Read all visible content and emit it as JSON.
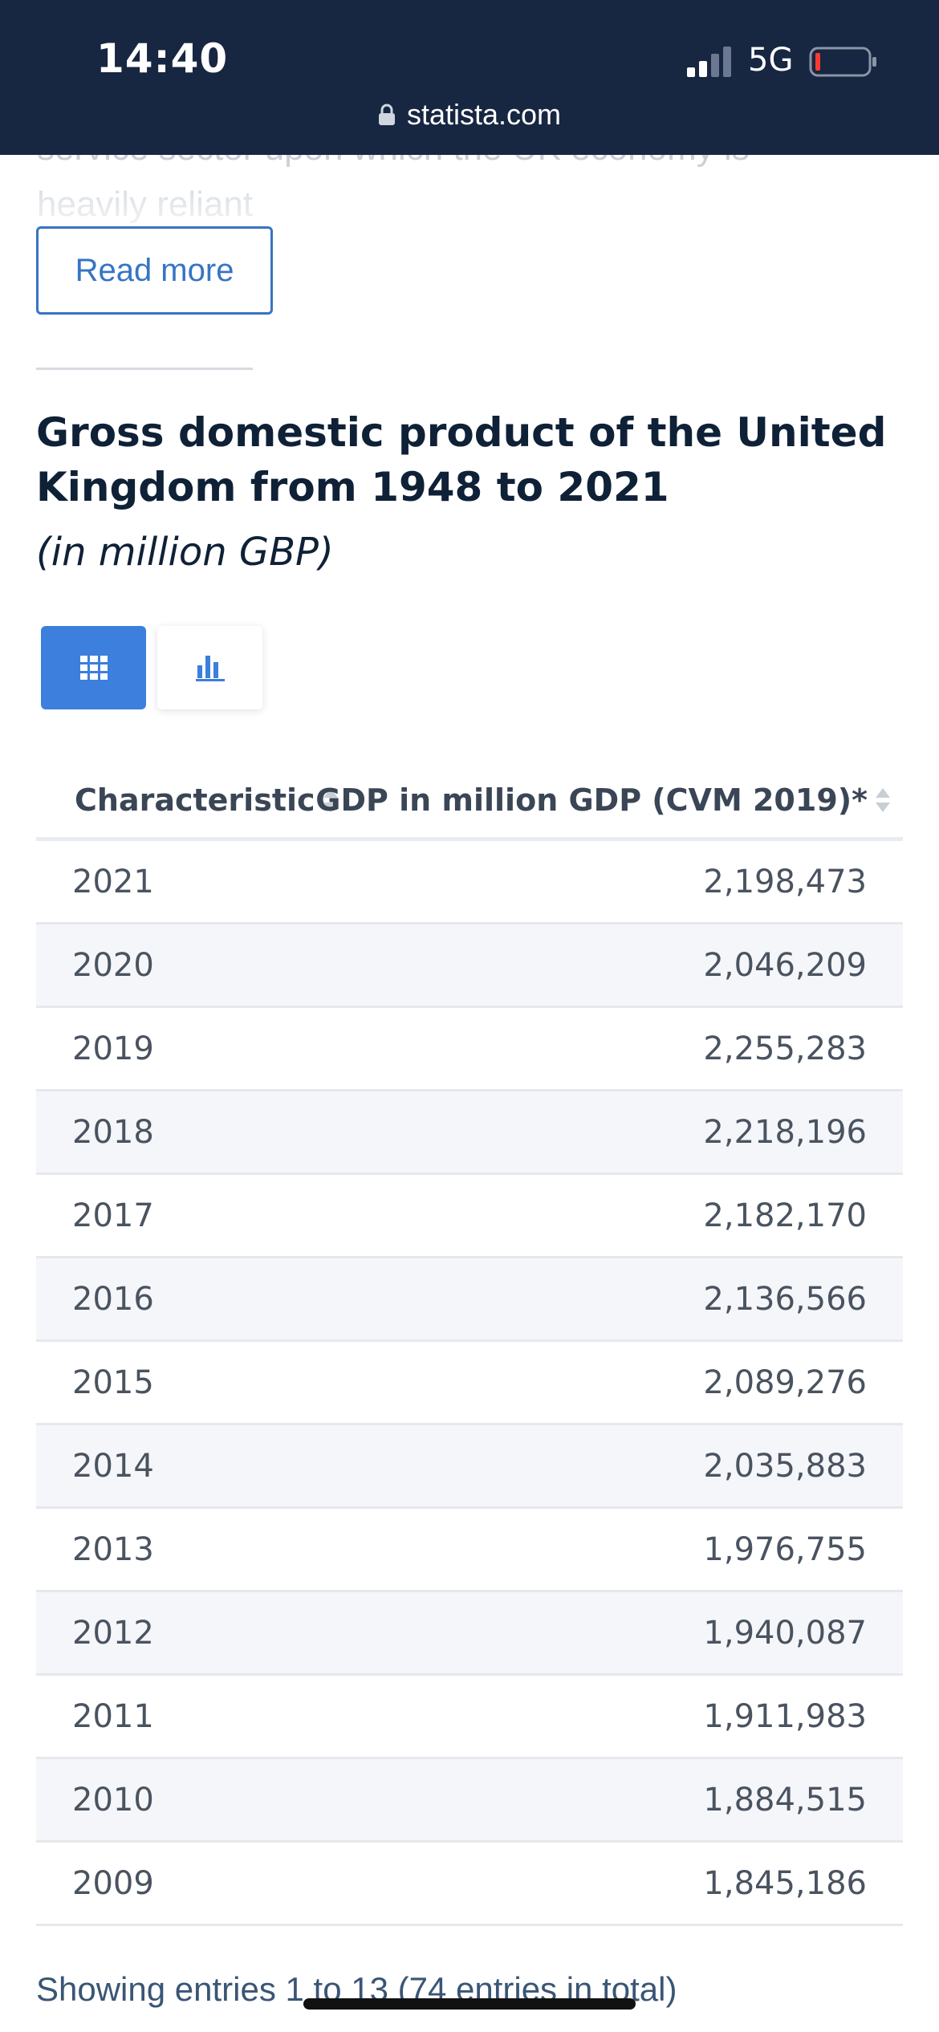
{
  "status_bar": {
    "time": "14:40",
    "network": "5G",
    "url": "statista.com"
  },
  "article": {
    "faded_text_line1": "service sector upon which the UK economy is",
    "faded_text_line2": "heavily reliant",
    "read_more_label": "Read more"
  },
  "statistic": {
    "title": "Gross domestic product of the United Kingdom from 1948 to 2021",
    "subtitle": "(in million GBP)"
  },
  "view_toggle": {
    "active": "table",
    "table_icon": "grid-icon",
    "chart_icon": "bar-chart-icon"
  },
  "table": {
    "columns": [
      "Characteristic",
      "GDP in million GDP (CVM 2019)*"
    ],
    "rows": [
      {
        "year": "2021",
        "value": "2,198,473"
      },
      {
        "year": "2020",
        "value": "2,046,209"
      },
      {
        "year": "2019",
        "value": "2,255,283"
      },
      {
        "year": "2018",
        "value": "2,218,196"
      },
      {
        "year": "2017",
        "value": "2,182,170"
      },
      {
        "year": "2016",
        "value": "2,136,566"
      },
      {
        "year": "2015",
        "value": "2,089,276"
      },
      {
        "year": "2014",
        "value": "2,035,883"
      },
      {
        "year": "2013",
        "value": "1,976,755"
      },
      {
        "year": "2012",
        "value": "1,940,087"
      },
      {
        "year": "2011",
        "value": "1,911,983"
      },
      {
        "year": "2010",
        "value": "1,884,515"
      },
      {
        "year": "2009",
        "value": "1,845,186"
      }
    ],
    "footer": "Showing entries 1 to 13 (74 entries in total)"
  },
  "colors": {
    "header_bg": "#172641",
    "accent": "#3c7fdc",
    "link": "#3774c4",
    "title_text": "#0f2137"
  }
}
